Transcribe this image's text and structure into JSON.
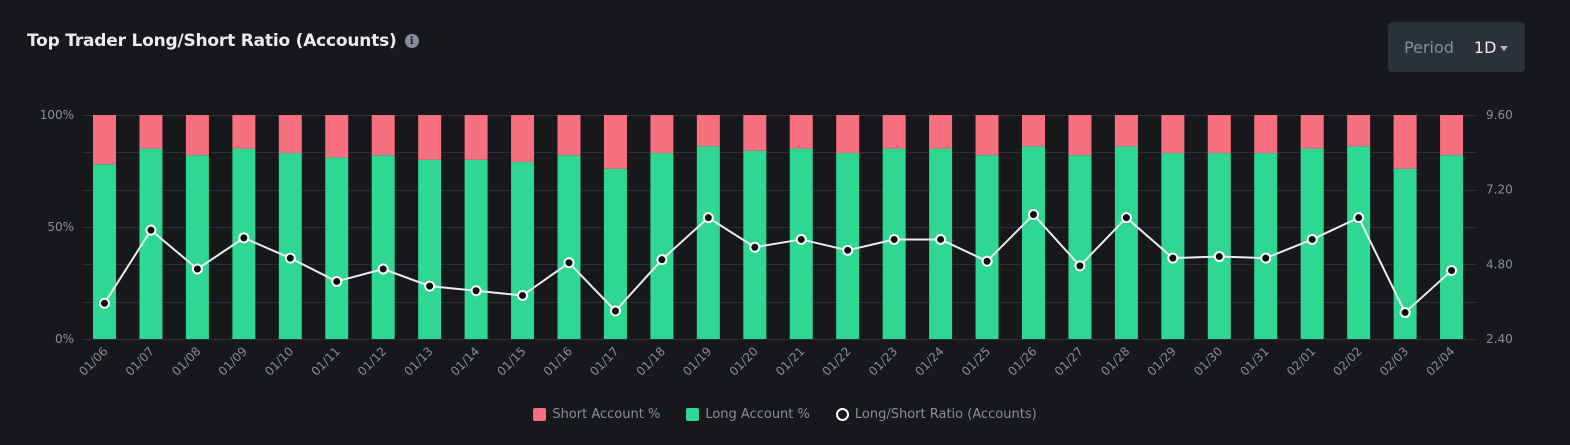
{
  "header": {
    "title": "Top Trader Long/Short Ratio (Accounts)",
    "info_icon": "info-icon"
  },
  "period": {
    "label": "Period",
    "value": "1D"
  },
  "colors": {
    "short": "#f6707f",
    "long": "#2ed893",
    "ratio_line": "#eaecef",
    "grid": "#2b2f36",
    "background": "#17181c"
  },
  "legend": {
    "short": "Short Account %",
    "long": "Long Account %",
    "ratio": "Long/Short Ratio (Accounts)"
  },
  "chart_data": {
    "type": "bar",
    "stacked": true,
    "categories": [
      "01/06",
      "01/07",
      "01/08",
      "01/09",
      "01/10",
      "01/11",
      "01/12",
      "01/13",
      "01/14",
      "01/15",
      "01/16",
      "01/17",
      "01/18",
      "01/19",
      "01/20",
      "01/21",
      "01/22",
      "01/23",
      "01/24",
      "01/25",
      "01/26",
      "01/27",
      "01/28",
      "01/29",
      "01/30",
      "01/31",
      "02/01",
      "02/02",
      "02/03",
      "02/04"
    ],
    "series": [
      {
        "name": "Long Account %",
        "axis": "left",
        "values": [
          78,
          85,
          82,
          85,
          83,
          81,
          82,
          80,
          80,
          79,
          82,
          76,
          83,
          86,
          84,
          85,
          83,
          85,
          85,
          82,
          86,
          82,
          86,
          83,
          83,
          83,
          85,
          86,
          76,
          82
        ]
      },
      {
        "name": "Short Account %",
        "axis": "left",
        "values": [
          22,
          15,
          18,
          15,
          17,
          19,
          18,
          20,
          20,
          21,
          18,
          24,
          17,
          14,
          16,
          15,
          17,
          15,
          15,
          18,
          14,
          18,
          14,
          17,
          17,
          17,
          15,
          14,
          24,
          18
        ]
      },
      {
        "name": "Long/Short Ratio (Accounts)",
        "axis": "right",
        "type": "line",
        "values": [
          3.55,
          5.9,
          4.65,
          5.65,
          5.0,
          4.25,
          4.65,
          4.1,
          3.95,
          3.8,
          4.85,
          3.3,
          4.95,
          6.3,
          5.35,
          5.6,
          5.25,
          5.6,
          5.6,
          4.9,
          6.4,
          4.75,
          6.3,
          5.0,
          5.05,
          5.0,
          5.6,
          6.3,
          3.25,
          4.6
        ]
      }
    ],
    "yleft": {
      "ticks": [
        "0%",
        "50%",
        "100%"
      ],
      "ylim": [
        0,
        100
      ]
    },
    "yright": {
      "ticks": [
        "2.40",
        "4.80",
        "7.20",
        "9.60"
      ],
      "ylim": [
        2.4,
        9.6
      ]
    },
    "grid": true,
    "legend_position": "bottom"
  }
}
